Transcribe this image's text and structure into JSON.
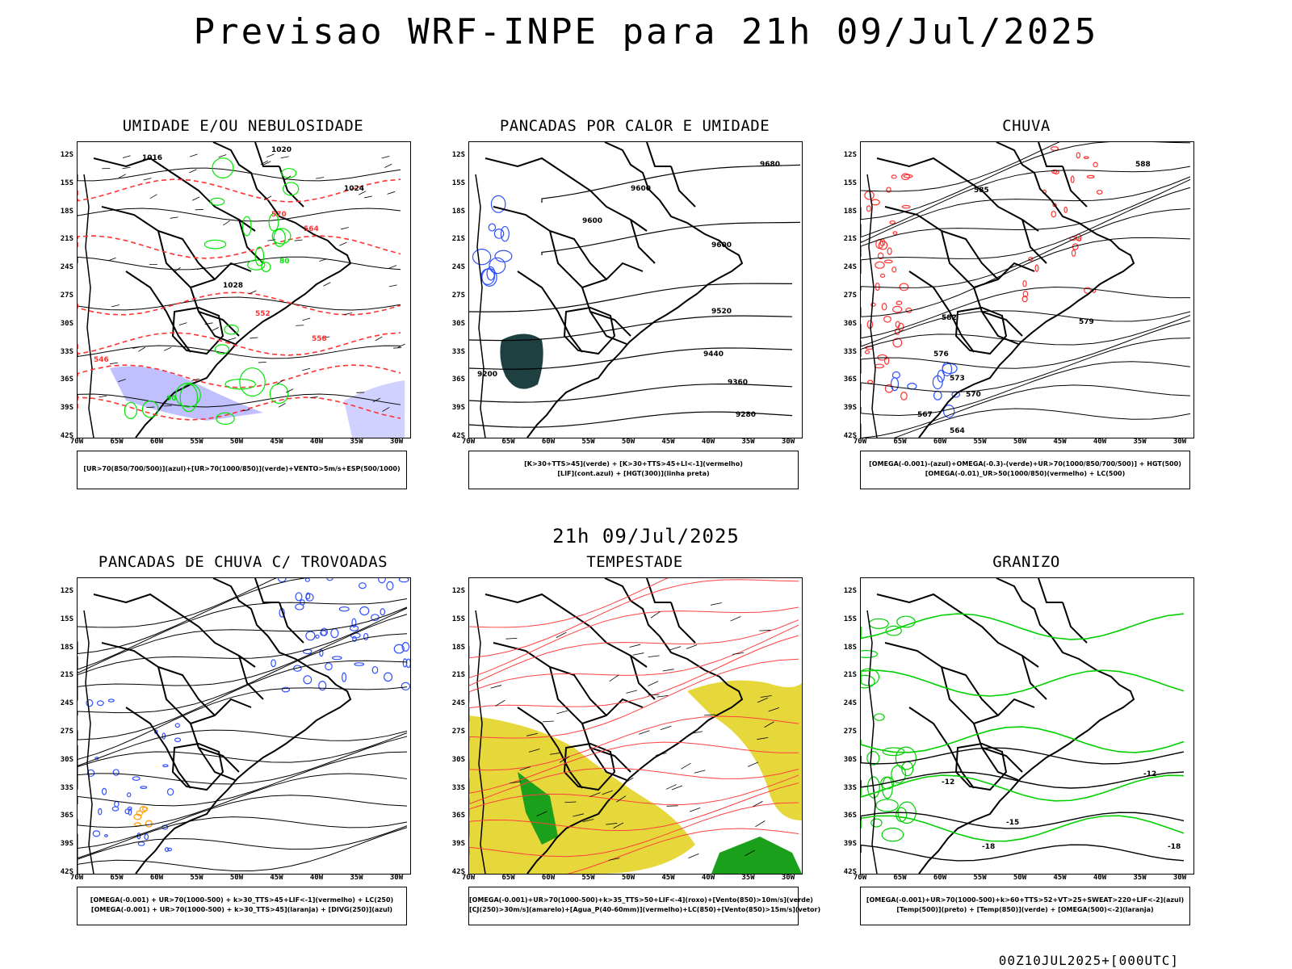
{
  "header": {
    "title": "Previsao WRF-INPE  para 21h 09/Jul/2025"
  },
  "middle_title": "21h 09/Jul/2025",
  "footer": "00Z10JUL2025+[000UTC]",
  "axes": {
    "lat_labels": [
      "12S",
      "15S",
      "18S",
      "21S",
      "24S",
      "27S",
      "30S",
      "33S",
      "36S",
      "39S",
      "42S"
    ],
    "lon_labels": [
      "70W",
      "65W",
      "60W",
      "55W",
      "50W",
      "45W",
      "40W",
      "35W",
      "30W"
    ]
  },
  "panels": [
    {
      "id": "umidade",
      "title": "UMIDADE E/OU NEBULOSIDADE",
      "legend": [
        "[UR>70(850/700/500)](azul)+[UR>70(1000/850)](verde)+VENTO>5m/s+ESP(500/1000)"
      ],
      "contour_labels": [
        "1016",
        "1020",
        "1024",
        "1028",
        "570",
        "564",
        "558",
        "552",
        "546",
        "80",
        "90"
      ],
      "colors": {
        "blue": "#8c8cff",
        "green": "#00e600",
        "red": "#ff3333"
      }
    },
    {
      "id": "pancadas-calor",
      "title": "PANCADAS POR CALOR E UMIDADE",
      "legend": [
        "[K>30+TTS>45](verde) + [K>30+TTS>45+LI<-1](vermelho)",
        "[LIF](cont.azul) + [HGT(300)](linha preta)"
      ],
      "contour_labels": [
        "9680",
        "9600",
        "9520",
        "9440",
        "9360",
        "9280",
        "9200"
      ],
      "colors": {
        "dark": "#1e4040",
        "blue": "#3050ff"
      }
    },
    {
      "id": "chuva",
      "title": "CHUVA",
      "legend": [
        "[OMEGA(-0.001)-(azul)+OMEGA(-0.3)-(verde)+UR>70(1000/850/700/500)] + HGT(500)",
        "[OMEGA(-0.01)_UR>50(1000/850)(vermelho) + LC(500)"
      ],
      "contour_labels": [
        "588",
        "585",
        "582",
        "579",
        "576",
        "573",
        "570",
        "567",
        "564"
      ],
      "colors": {
        "red": "#ff3333",
        "blue": "#3050ff"
      }
    },
    {
      "id": "trovoadas",
      "title": "PANCADAS DE CHUVA C/ TROVOADAS",
      "legend": [
        "[OMEGA(-0.001) + UR>70(1000-500) + k>30_TTS>45+LIF<-1](vermelho) + LC(250)",
        "[OMEGA(-0.001) + UR>70(1000-500) + k>30_TTS>45](laranja) + [DIVG(250)](azul)"
      ],
      "contour_labels": [],
      "colors": {
        "blue": "#3050ff",
        "orange": "#ff9900"
      }
    },
    {
      "id": "tempestade",
      "title": "TEMPESTADE",
      "legend": [
        "[OMEGA(-0.001)+UR>70(1000-500)+k>35_TTS>50+LIF<-4](roxo)+[Vento(850)>10m/s](verde)",
        "[CJ(250)>30m/s](amarelo)+[Agua_P(40-60mm)](vermelho)+LC(850)+[Vento(850)>15m/s](vetor)"
      ],
      "contour_labels": [],
      "colors": {
        "yellow": "#e6d83a",
        "red": "#ff4040",
        "green": "#1aa01a"
      }
    },
    {
      "id": "granizo",
      "title": "GRANIZO",
      "legend": [
        "[OMEGA(-0.001)+UR>70(1000-500)+k>60+TTS>52+VT>25+SWEAT>220+LIF<-2](azul)",
        "[Temp(500)](preto) + [Temp(850)](verde) + [OMEGA(500)<-2](laranja)"
      ],
      "contour_labels": [
        "-12",
        "-15",
        "-18"
      ],
      "colors": {
        "green": "#00d000"
      }
    }
  ]
}
